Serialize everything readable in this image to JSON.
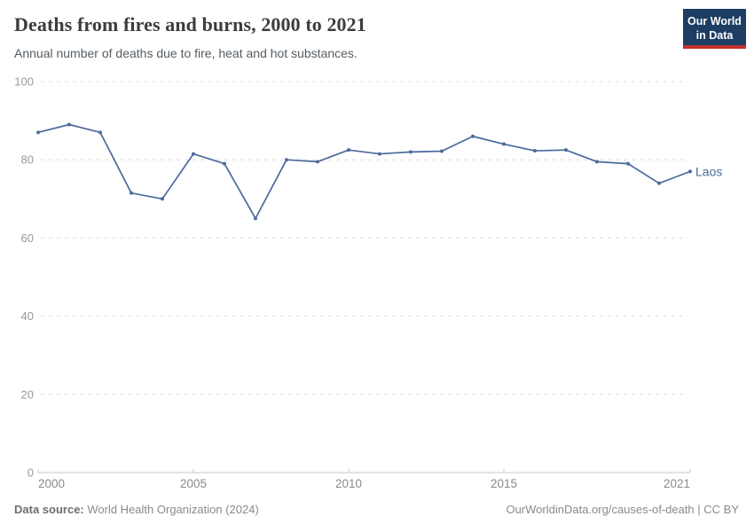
{
  "header": {
    "title": "Deaths from fires and burns, 2000 to 2021",
    "subtitle": "Annual number of deaths due to fire, heat and hot substances."
  },
  "logo": {
    "line1": "Our World",
    "line2": "in Data",
    "bg_color": "#1d3d63",
    "accent_color": "#c5302c",
    "text_color": "#ffffff"
  },
  "chart_data": {
    "type": "line",
    "title": "Deaths from fires and burns, 2000 to 2021",
    "subtitle": "Annual number of deaths due to fire, heat and hot substances.",
    "xlabel": "",
    "ylabel": "",
    "x": [
      2000,
      2001,
      2002,
      2003,
      2004,
      2005,
      2006,
      2007,
      2008,
      2009,
      2010,
      2011,
      2012,
      2013,
      2014,
      2015,
      2016,
      2017,
      2018,
      2019,
      2020,
      2021
    ],
    "series": [
      {
        "name": "Laos",
        "color": "#4c6a9c",
        "values": [
          87,
          89,
          87,
          71.5,
          70,
          81.5,
          79,
          65,
          80,
          79.5,
          82.5,
          81.5,
          82,
          82.2,
          86,
          84,
          82.3,
          82.5,
          79.5,
          79,
          74,
          77
        ]
      }
    ],
    "ylim": [
      0,
      100
    ],
    "yticks": [
      0,
      20,
      40,
      60,
      80,
      100
    ],
    "xticks": [
      2000,
      2005,
      2010,
      2015,
      2021
    ],
    "grid": "dashed-horizontal",
    "legend_position": "end-of-line-label",
    "entity_label": "Laos"
  },
  "footer": {
    "datasource_label": "Data source:",
    "datasource_value": " World Health Organization (2024)",
    "credit": "OurWorldinData.org/causes-of-death | CC BY"
  }
}
